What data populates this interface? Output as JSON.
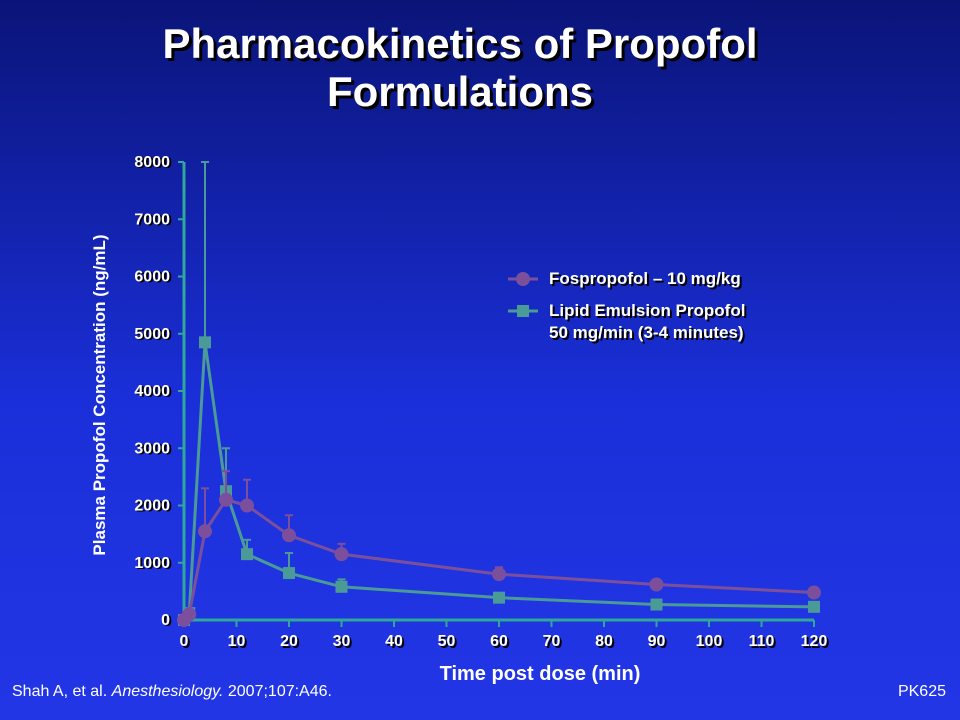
{
  "slide": {
    "title_line1": "Pharmacokinetics of Propofol",
    "title_line2": "Formulations",
    "citation_authors": "Shah A, et al.",
    "citation_journal": "Anesthesiology.",
    "citation_ref": "2007;107:A46.",
    "slide_id": "PK625"
  },
  "colors": {
    "fospropofol": "#7c4f9c",
    "lipid": "#4a9a98",
    "axis": "#2fa89a",
    "background_top": "#0a1478",
    "background_bottom": "#2336e6"
  },
  "chart_data": {
    "type": "line",
    "title": "",
    "xlabel": "Time post dose (min)",
    "ylabel": "Plasma Propofol Concentration (ng/mL)",
    "xlim": [
      0,
      120
    ],
    "ylim": [
      0,
      8000
    ],
    "xticks": [
      "0",
      "10",
      "20",
      "30",
      "40",
      "50",
      "60",
      "70",
      "80",
      "90",
      "100",
      "110",
      "120"
    ],
    "yticks": [
      "0",
      "1000",
      "2000",
      "3000",
      "4000",
      "5000",
      "6000",
      "7000",
      "8000"
    ],
    "grid": false,
    "legend_position": "upper-right",
    "series": [
      {
        "name": "Fospropofol – 10 mg/kg",
        "marker": "circle",
        "x": [
          0,
          1,
          4,
          8,
          12,
          20,
          30,
          60,
          90,
          120
        ],
        "y": [
          0,
          100,
          1550,
          2100,
          2000,
          1480,
          1150,
          800,
          620,
          480
        ],
        "err": [
          0,
          0,
          750,
          500,
          450,
          350,
          180,
          120,
          0,
          0
        ]
      },
      {
        "name": "Lipid Emulsion Propofol\n50 mg/min (3-4 minutes)",
        "name_line1": "Lipid Emulsion Propofol",
        "name_line2": "50 mg/min (3-4 minutes)",
        "marker": "square",
        "x": [
          0,
          1,
          4,
          8,
          12,
          20,
          30,
          60,
          90,
          120
        ],
        "y": [
          0,
          120,
          4850,
          2250,
          1150,
          820,
          580,
          390,
          270,
          230
        ],
        "err": [
          0,
          0,
          3150,
          750,
          250,
          350,
          130,
          80,
          60,
          0
        ]
      }
    ]
  }
}
